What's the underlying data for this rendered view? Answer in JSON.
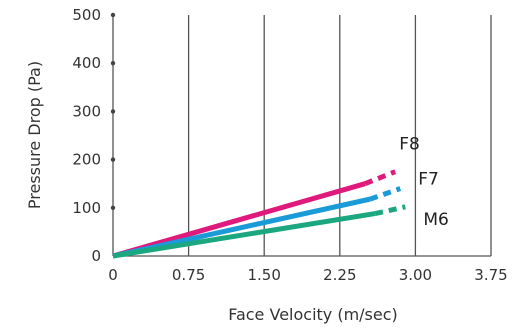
{
  "chart_data": {
    "type": "line",
    "title": "",
    "xlabel": "Face Velocity (m/sec)",
    "ylabel": "Pressure Drop (Pa)",
    "xlim": [
      0,
      3.75
    ],
    "ylim": [
      0,
      500
    ],
    "x_ticks": [
      "0",
      "0.75",
      "1.50",
      "2.25",
      "3.00",
      "3.75"
    ],
    "y_ticks": [
      "0",
      "100",
      "200",
      "300",
      "400",
      "500"
    ],
    "grid": "vertical",
    "series": [
      {
        "name": "F8",
        "color": "#e0197d",
        "solid": [
          [
            0,
            0
          ],
          [
            2.5,
            150
          ]
        ],
        "dashed": [
          [
            2.5,
            150
          ],
          [
            2.8,
            175
          ]
        ]
      },
      {
        "name": "F7",
        "color": "#1a9ad6",
        "solid": [
          [
            0,
            0
          ],
          [
            2.55,
            118
          ]
        ],
        "dashed": [
          [
            2.55,
            118
          ],
          [
            2.85,
            140
          ]
        ]
      },
      {
        "name": "M6",
        "color": "#1ba77f",
        "solid": [
          [
            0,
            0
          ],
          [
            2.6,
            88
          ]
        ],
        "dashed": [
          [
            2.6,
            88
          ],
          [
            2.9,
            102
          ]
        ]
      }
    ]
  }
}
